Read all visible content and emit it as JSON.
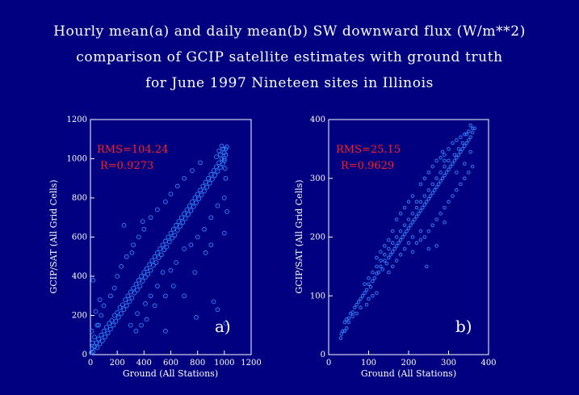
{
  "title_lines": [
    "Hourly mean(a) and daily mean(b) SW downward flux (W/m**2)",
    "comparison of GCIP satellite estimates with ground truth",
    "for June 1997 Nineteen sites in Illinois"
  ],
  "colors": {
    "background": "#000080",
    "points": "#2e8bff",
    "axes": "#ffffff",
    "stats": "#ff2020"
  },
  "chart_data": [
    {
      "type": "scatter",
      "panel_label": "a)",
      "xlabel": "Ground (All Stations)",
      "ylabel": "GCIP/SAT (All Grid Cells)",
      "xlim": [
        0,
        1200
      ],
      "ylim": [
        0,
        1200
      ],
      "xticks": [
        "0",
        "200",
        "400",
        "600",
        "800",
        "1000",
        "1200"
      ],
      "yticks": [
        "0",
        "200",
        "400",
        "600",
        "800",
        "1000",
        "1200"
      ],
      "rms_text": "RMS=104.24",
      "r_text": "R=0.9273",
      "rms": 104.24,
      "r": 0.9273,
      "marker": "circle",
      "points": [
        [
          5,
          10
        ],
        [
          12,
          30
        ],
        [
          20,
          15
        ],
        [
          30,
          40
        ],
        [
          45,
          60
        ],
        [
          50,
          35
        ],
        [
          60,
          80
        ],
        [
          70,
          55
        ],
        [
          80,
          100
        ],
        [
          90,
          70
        ],
        [
          100,
          120
        ],
        [
          110,
          90
        ],
        [
          120,
          140
        ],
        [
          130,
          110
        ],
        [
          140,
          160
        ],
        [
          150,
          130
        ],
        [
          160,
          175
        ],
        [
          170,
          150
        ],
        [
          180,
          200
        ],
        [
          190,
          170
        ],
        [
          200,
          215
        ],
        [
          210,
          190
        ],
        [
          220,
          240
        ],
        [
          230,
          210
        ],
        [
          240,
          255
        ],
        [
          250,
          230
        ],
        [
          260,
          280
        ],
        [
          270,
          250
        ],
        [
          280,
          300
        ],
        [
          290,
          270
        ],
        [
          300,
          320
        ],
        [
          310,
          290
        ],
        [
          320,
          340
        ],
        [
          330,
          315
        ],
        [
          340,
          360
        ],
        [
          350,
          330
        ],
        [
          360,
          380
        ],
        [
          370,
          350
        ],
        [
          380,
          400
        ],
        [
          390,
          375
        ],
        [
          400,
          420
        ],
        [
          410,
          395
        ],
        [
          420,
          440
        ],
        [
          430,
          410
        ],
        [
          440,
          460
        ],
        [
          450,
          430
        ],
        [
          460,
          480
        ],
        [
          470,
          455
        ],
        [
          480,
          500
        ],
        [
          490,
          470
        ],
        [
          500,
          520
        ],
        [
          510,
          495
        ],
        [
          520,
          540
        ],
        [
          530,
          510
        ],
        [
          540,
          560
        ],
        [
          550,
          535
        ],
        [
          560,
          580
        ],
        [
          570,
          550
        ],
        [
          580,
          600
        ],
        [
          590,
          575
        ],
        [
          600,
          620
        ],
        [
          610,
          595
        ],
        [
          620,
          640
        ],
        [
          630,
          610
        ],
        [
          640,
          660
        ],
        [
          650,
          635
        ],
        [
          660,
          680
        ],
        [
          670,
          655
        ],
        [
          680,
          700
        ],
        [
          690,
          675
        ],
        [
          700,
          720
        ],
        [
          710,
          695
        ],
        [
          720,
          740
        ],
        [
          730,
          715
        ],
        [
          740,
          760
        ],
        [
          750,
          735
        ],
        [
          760,
          780
        ],
        [
          770,
          755
        ],
        [
          780,
          800
        ],
        [
          790,
          775
        ],
        [
          800,
          820
        ],
        [
          810,
          795
        ],
        [
          820,
          840
        ],
        [
          830,
          815
        ],
        [
          840,
          860
        ],
        [
          850,
          835
        ],
        [
          860,
          880
        ],
        [
          870,
          855
        ],
        [
          880,
          900
        ],
        [
          890,
          875
        ],
        [
          900,
          920
        ],
        [
          910,
          895
        ],
        [
          920,
          940
        ],
        [
          930,
          915
        ],
        [
          940,
          960
        ],
        [
          950,
          935
        ],
        [
          960,
          980
        ],
        [
          970,
          955
        ],
        [
          980,
          1000
        ],
        [
          990,
          975
        ],
        [
          1000,
          1030
        ],
        [
          1010,
          1050
        ],
        [
          1020,
          1060
        ],
        [
          980,
          1065
        ],
        [
          960,
          1040
        ],
        [
          940,
          1010
        ],
        [
          1000,
          990
        ],
        [
          1010,
          1020
        ],
        [
          990,
          1050
        ],
        [
          970,
          1020
        ],
        [
          250,
          660
        ],
        [
          20,
          380
        ],
        [
          310,
          520
        ],
        [
          390,
          680
        ],
        [
          300,
          150
        ],
        [
          350,
          210
        ],
        [
          410,
          260
        ],
        [
          450,
          300
        ],
        [
          500,
          350
        ],
        [
          540,
          420
        ],
        [
          600,
          430
        ],
        [
          640,
          470
        ],
        [
          700,
          540
        ],
        [
          750,
          560
        ],
        [
          800,
          600
        ],
        [
          850,
          640
        ],
        [
          900,
          700
        ],
        [
          950,
          760
        ],
        [
          1000,
          800
        ],
        [
          700,
          300
        ],
        [
          780,
          420
        ],
        [
          860,
          520
        ],
        [
          900,
          560
        ],
        [
          620,
          350
        ],
        [
          560,
          300
        ],
        [
          480,
          250
        ],
        [
          420,
          180
        ],
        [
          380,
          150
        ],
        [
          340,
          120
        ],
        [
          150,
          300
        ],
        [
          180,
          340
        ],
        [
          200,
          400
        ],
        [
          230,
          450
        ],
        [
          270,
          500
        ],
        [
          320,
          560
        ],
        [
          360,
          600
        ],
        [
          400,
          640
        ],
        [
          450,
          700
        ],
        [
          500,
          740
        ],
        [
          560,
          780
        ],
        [
          600,
          820
        ],
        [
          650,
          860
        ],
        [
          700,
          900
        ],
        [
          760,
          940
        ],
        [
          820,
          980
        ],
        [
          100,
          250
        ],
        [
          80,
          200
        ],
        [
          60,
          150
        ],
        [
          1000,
          1000
        ],
        [
          1005,
          950
        ],
        [
          1010,
          900
        ],
        [
          1000,
          620
        ],
        [
          1020,
          730
        ],
        [
          920,
          270
        ],
        [
          1010,
          160
        ],
        [
          950,
          230
        ],
        [
          790,
          190
        ],
        [
          560,
          120
        ],
        [
          50,
          150
        ],
        [
          30,
          90
        ],
        [
          15,
          60
        ],
        [
          10,
          120
        ],
        [
          40,
          220
        ],
        [
          70,
          280
        ]
      ]
    },
    {
      "type": "scatter",
      "panel_label": "b)",
      "xlabel": "Ground (All Stations)",
      "ylabel": "GCIP/SAT (All Grid Cells)",
      "xlim": [
        0,
        400
      ],
      "ylim": [
        0,
        400
      ],
      "xticks": [
        "0",
        "100",
        "200",
        "300",
        "400"
      ],
      "yticks": [
        "0",
        "100",
        "200",
        "300",
        "400"
      ],
      "rms_text": "RMS=25.15",
      "r_text": "R=0.9629",
      "rms": 25.15,
      "r": 0.9629,
      "marker": "circle",
      "points": [
        [
          30,
          28
        ],
        [
          32,
          35
        ],
        [
          35,
          40
        ],
        [
          40,
          55
        ],
        [
          45,
          60
        ],
        [
          50,
          62
        ],
        [
          55,
          70
        ],
        [
          60,
          72
        ],
        [
          65,
          80
        ],
        [
          70,
          85
        ],
        [
          75,
          90
        ],
        [
          80,
          95
        ],
        [
          85,
          100
        ],
        [
          90,
          105
        ],
        [
          95,
          110
        ],
        [
          100,
          120
        ],
        [
          105,
          115
        ],
        [
          110,
          125
        ],
        [
          115,
          130
        ],
        [
          120,
          138
        ],
        [
          125,
          140
        ],
        [
          130,
          150
        ],
        [
          135,
          145
        ],
        [
          140,
          160
        ],
        [
          145,
          155
        ],
        [
          150,
          165
        ],
        [
          155,
          170
        ],
        [
          160,
          175
        ],
        [
          165,
          180
        ],
        [
          170,
          185
        ],
        [
          175,
          190
        ],
        [
          180,
          195
        ],
        [
          185,
          200
        ],
        [
          190,
          205
        ],
        [
          195,
          210
        ],
        [
          200,
          215
        ],
        [
          205,
          220
        ],
        [
          210,
          225
        ],
        [
          215,
          230
        ],
        [
          220,
          235
        ],
        [
          225,
          240
        ],
        [
          230,
          245
        ],
        [
          235,
          250
        ],
        [
          240,
          255
        ],
        [
          245,
          260
        ],
        [
          250,
          265
        ],
        [
          255,
          270
        ],
        [
          260,
          275
        ],
        [
          265,
          280
        ],
        [
          270,
          285
        ],
        [
          275,
          290
        ],
        [
          280,
          295
        ],
        [
          285,
          300
        ],
        [
          290,
          305
        ],
        [
          295,
          310
        ],
        [
          300,
          315
        ],
        [
          305,
          320
        ],
        [
          310,
          325
        ],
        [
          315,
          330
        ],
        [
          320,
          335
        ],
        [
          325,
          340
        ],
        [
          330,
          345
        ],
        [
          335,
          350
        ],
        [
          340,
          355
        ],
        [
          345,
          360
        ],
        [
          350,
          365
        ],
        [
          355,
          370
        ],
        [
          360,
          378
        ],
        [
          365,
          385
        ],
        [
          355,
          390
        ],
        [
          345,
          375
        ],
        [
          335,
          360
        ],
        [
          325,
          350
        ],
        [
          315,
          340
        ],
        [
          300,
          330
        ],
        [
          290,
          320
        ],
        [
          280,
          310
        ],
        [
          270,
          300
        ],
        [
          260,
          290
        ],
        [
          250,
          280
        ],
        [
          240,
          270
        ],
        [
          230,
          260
        ],
        [
          220,
          250
        ],
        [
          210,
          240
        ],
        [
          200,
          230
        ],
        [
          190,
          220
        ],
        [
          180,
          210
        ],
        [
          170,
          200
        ],
        [
          160,
          190
        ],
        [
          150,
          180
        ],
        [
          140,
          170
        ],
        [
          130,
          160
        ],
        [
          120,
          150
        ],
        [
          110,
          140
        ],
        [
          100,
          130
        ],
        [
          90,
          120
        ],
        [
          210,
          270
        ],
        [
          220,
          260
        ],
        [
          230,
          290
        ],
        [
          240,
          300
        ],
        [
          250,
          310
        ],
        [
          260,
          320
        ],
        [
          270,
          330
        ],
        [
          280,
          335
        ],
        [
          290,
          340
        ],
        [
          300,
          350
        ],
        [
          310,
          360
        ],
        [
          320,
          365
        ],
        [
          330,
          370
        ],
        [
          340,
          375
        ],
        [
          350,
          380
        ],
        [
          360,
          385
        ],
        [
          230,
          195
        ],
        [
          240,
          200
        ],
        [
          250,
          210
        ],
        [
          260,
          220
        ],
        [
          270,
          230
        ],
        [
          280,
          240
        ],
        [
          290,
          250
        ],
        [
          300,
          260
        ],
        [
          310,
          270
        ],
        [
          320,
          280
        ],
        [
          330,
          290
        ],
        [
          340,
          300
        ],
        [
          350,
          310
        ],
        [
          360,
          320
        ],
        [
          285,
          345
        ],
        [
          290,
          225
        ],
        [
          270,
          185
        ],
        [
          250,
          180
        ],
        [
          245,
          150
        ],
        [
          320,
          310
        ],
        [
          290,
          330
        ],
        [
          340,
          325
        ],
        [
          355,
          345
        ],
        [
          150,
          140
        ],
        [
          160,
          150
        ],
        [
          170,
          160
        ],
        [
          180,
          170
        ],
        [
          190,
          180
        ],
        [
          200,
          190
        ],
        [
          210,
          200
        ],
        [
          120,
          105
        ],
        [
          110,
          100
        ],
        [
          100,
          95
        ],
        [
          95,
          85
        ],
        [
          80,
          80
        ],
        [
          70,
          70
        ],
        [
          60,
          65
        ],
        [
          50,
          55
        ],
        [
          45,
          45
        ],
        [
          40,
          40
        ],
        [
          210,
          175
        ],
        [
          220,
          190
        ],
        [
          230,
          210
        ],
        [
          170,
          230
        ],
        [
          180,
          240
        ],
        [
          190,
          250
        ],
        [
          200,
          260
        ],
        [
          160,
          210
        ],
        [
          150,
          195
        ],
        [
          140,
          185
        ],
        [
          130,
          175
        ],
        [
          120,
          165
        ]
      ]
    }
  ]
}
